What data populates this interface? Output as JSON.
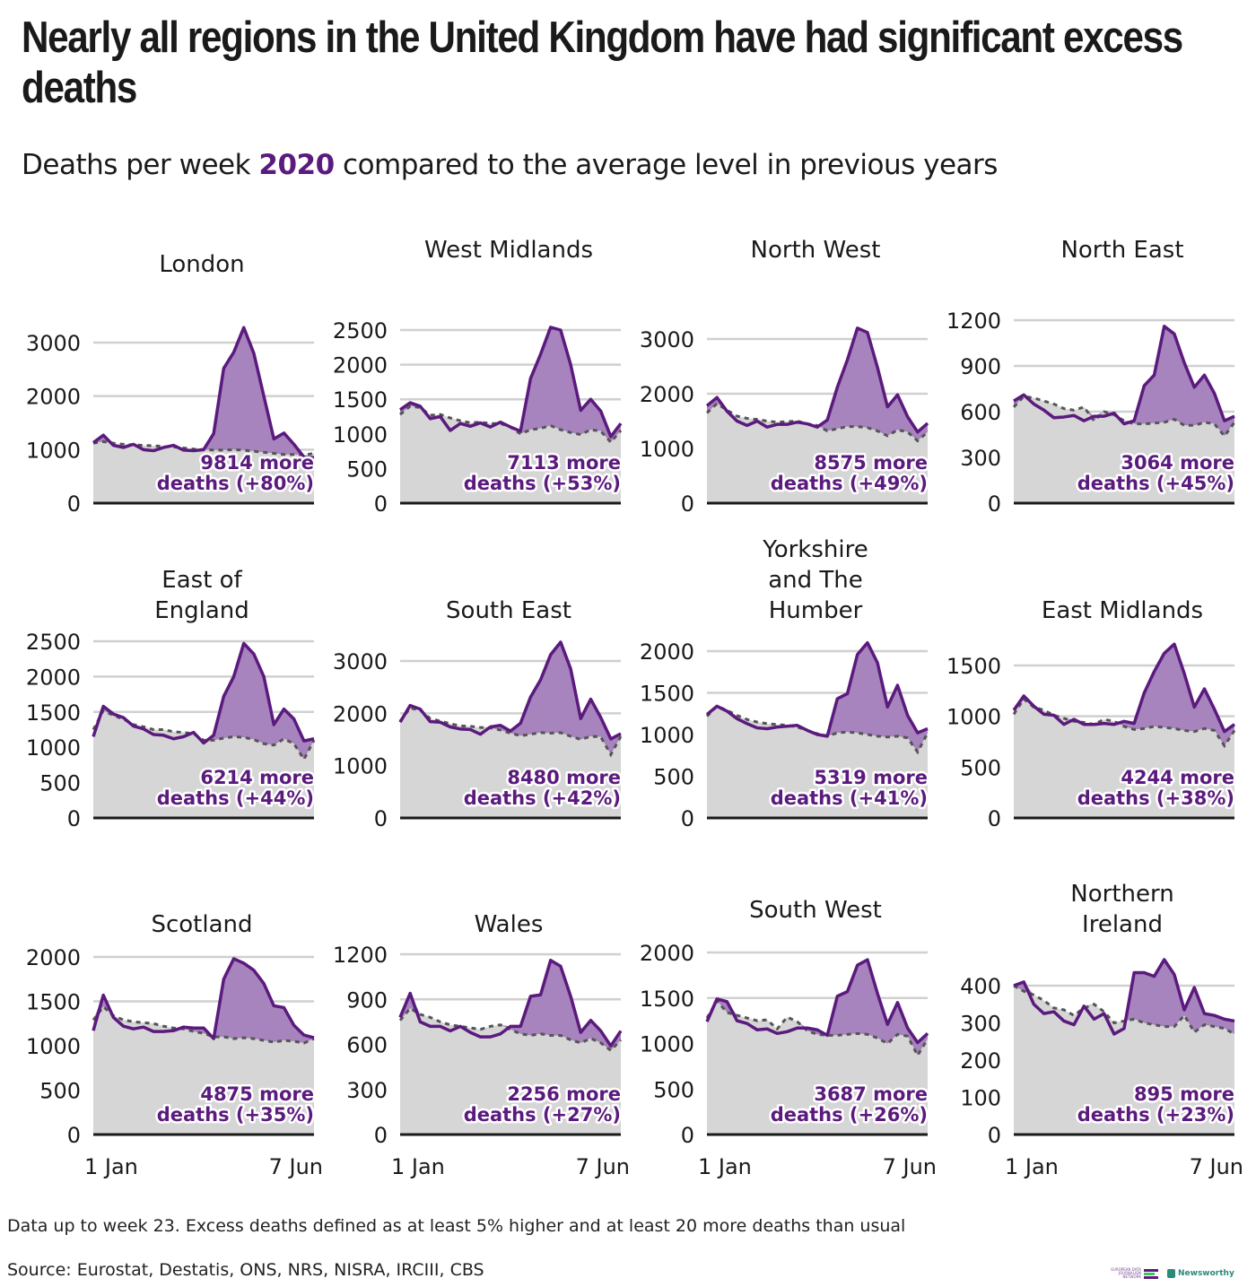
{
  "title": "Nearly all regions in the United Kingdom have had significant excess deaths",
  "subtitle": {
    "prefix": "Deaths per week ",
    "year": "2020",
    "suffix": " compared to the average level in previous years"
  },
  "footnote": "Data up to week 23. Excess deaths defined as at least 5% higher and at least 20 more deaths than usual",
  "source": "Source: Eurostat, Destatis, ONS, NRS, NISRA, IRCIII, CBS",
  "logos": {
    "edjn": "EUROPEAN DATA JOURNALISM NETWORK",
    "newsworthy": "Newsworthy"
  },
  "colors": {
    "line_2020": "#5b1a7d",
    "excess_fill": "#a784bd",
    "baseline_fill": "#d6d6d6",
    "baseline_line": "#555555",
    "grid": "#d0d0d0",
    "axis": "#1a1a1a"
  },
  "chart_data": [
    {
      "type": "area",
      "title": "London",
      "x_labels": [
        "1 Jan",
        "7 Jun"
      ],
      "weeks": 23,
      "yticks": [
        0,
        1000,
        2000,
        3000
      ],
      "ylim": [
        0,
        3300
      ],
      "annotation": [
        "9814 more",
        "deaths (+80%)"
      ],
      "series": [
        {
          "name": "2020",
          "values": [
            1130,
            1270,
            1080,
            1040,
            1100,
            1000,
            980,
            1040,
            1080,
            990,
            980,
            1000,
            1300,
            2520,
            2820,
            3280,
            2800,
            2000,
            1200,
            1310,
            1100,
            860,
            850
          ]
        },
        {
          "name": "average",
          "values": [
            1120,
            1150,
            1120,
            1100,
            1090,
            1080,
            1070,
            1060,
            1050,
            1030,
            1010,
            1000,
            990,
            990,
            1000,
            990,
            970,
            950,
            930,
            910,
            910,
            900,
            930
          ]
        }
      ]
    },
    {
      "type": "area",
      "title": "West Midlands",
      "x_labels": [
        "1 Jan",
        "7 Jun"
      ],
      "weeks": 23,
      "yticks": [
        0,
        500,
        1000,
        1500,
        2000,
        2500
      ],
      "ylim": [
        0,
        2600
      ],
      "annotation": [
        "7113 more",
        "deaths (+53%)"
      ],
      "series": [
        {
          "name": "2020",
          "values": [
            1350,
            1450,
            1400,
            1220,
            1250,
            1050,
            1150,
            1110,
            1160,
            1100,
            1170,
            1100,
            1040,
            1800,
            2150,
            2540,
            2500,
            2000,
            1340,
            1500,
            1330,
            960,
            1150
          ]
        },
        {
          "name": "average",
          "values": [
            1280,
            1400,
            1380,
            1270,
            1280,
            1230,
            1190,
            1160,
            1170,
            1150,
            1150,
            1100,
            1000,
            1060,
            1080,
            1120,
            1060,
            1020,
            990,
            1060,
            1040,
            880,
            1050
          ]
        }
      ]
    },
    {
      "type": "area",
      "title": "North West",
      "x_labels": [
        "1 Jan",
        "7 Jun"
      ],
      "weeks": 23,
      "yticks": [
        0,
        1000,
        2000,
        3000
      ],
      "ylim": [
        0,
        3300
      ],
      "annotation": [
        "8575 more",
        "deaths (+49%)"
      ],
      "series": [
        {
          "name": "2020",
          "values": [
            1780,
            1930,
            1680,
            1500,
            1420,
            1500,
            1390,
            1440,
            1440,
            1480,
            1450,
            1390,
            1520,
            2120,
            2620,
            3200,
            3120,
            2480,
            1760,
            1980,
            1580,
            1300,
            1460
          ]
        },
        {
          "name": "average",
          "values": [
            1650,
            1820,
            1700,
            1590,
            1550,
            1530,
            1500,
            1480,
            1490,
            1500,
            1450,
            1420,
            1320,
            1360,
            1400,
            1400,
            1380,
            1320,
            1230,
            1340,
            1300,
            1140,
            1300
          ]
        }
      ]
    },
    {
      "type": "area",
      "title": "North East",
      "x_labels": [
        "1 Jan",
        "7 Jun"
      ],
      "weeks": 23,
      "yticks": [
        0,
        300,
        600,
        900,
        1200
      ],
      "ylim": [
        0,
        1250
      ],
      "annotation": [
        "3064 more",
        "deaths (+45%)"
      ],
      "series": [
        {
          "name": "2020",
          "values": [
            670,
            710,
            650,
            610,
            560,
            565,
            575,
            540,
            570,
            570,
            590,
            520,
            540,
            770,
            840,
            1160,
            1110,
            920,
            760,
            840,
            720,
            540,
            570
          ]
        },
        {
          "name": "average",
          "values": [
            630,
            700,
            690,
            670,
            650,
            620,
            610,
            630,
            540,
            600,
            580,
            540,
            520,
            520,
            525,
            530,
            550,
            510,
            510,
            530,
            520,
            440,
            530
          ]
        }
      ]
    },
    {
      "type": "area",
      "title": "East of\nEngland",
      "x_labels": [
        "1 Jan",
        "7 Jun"
      ],
      "weeks": 23,
      "yticks": [
        0,
        500,
        1000,
        1500,
        2000,
        2500
      ],
      "ylim": [
        0,
        2600
      ],
      "annotation": [
        "6214 more",
        "deaths (+44%)"
      ],
      "series": [
        {
          "name": "2020",
          "values": [
            1150,
            1580,
            1470,
            1420,
            1300,
            1260,
            1180,
            1170,
            1120,
            1150,
            1210,
            1060,
            1170,
            1720,
            2000,
            2470,
            2320,
            2000,
            1320,
            1540,
            1400,
            1090,
            1120
          ]
        },
        {
          "name": "average",
          "values": [
            1250,
            1520,
            1450,
            1400,
            1320,
            1290,
            1250,
            1250,
            1220,
            1210,
            1190,
            1100,
            1100,
            1130,
            1150,
            1140,
            1110,
            1050,
            1030,
            1120,
            1050,
            830,
            1100
          ]
        }
      ]
    },
    {
      "type": "area",
      "title": "South East",
      "x_labels": [
        "1 Jan",
        "7 Jun"
      ],
      "weeks": 23,
      "yticks": [
        0,
        1000,
        2000,
        3000
      ],
      "ylim": [
        0,
        3400
      ],
      "annotation": [
        "8480 more",
        "deaths (+42%)"
      ],
      "series": [
        {
          "name": "2020",
          "values": [
            1830,
            2150,
            2080,
            1840,
            1830,
            1740,
            1700,
            1690,
            1600,
            1740,
            1770,
            1660,
            1810,
            2310,
            2640,
            3120,
            3360,
            2850,
            1900,
            2270,
            1920,
            1510,
            1610
          ]
        },
        {
          "name": "average",
          "values": [
            1850,
            2100,
            2060,
            1900,
            1850,
            1800,
            1760,
            1750,
            1730,
            1720,
            1680,
            1620,
            1570,
            1600,
            1630,
            1620,
            1630,
            1560,
            1500,
            1560,
            1550,
            1210,
            1560
          ]
        }
      ]
    },
    {
      "type": "area",
      "title": "Yorkshire\nand The\nHumber",
      "x_labels": [
        "1 Jan",
        "7 Jun"
      ],
      "weeks": 23,
      "yticks": [
        0,
        500,
        1000,
        1500,
        2000
      ],
      "ylim": [
        0,
        2150
      ],
      "annotation": [
        "5319 more",
        "deaths (+41%)"
      ],
      "series": [
        {
          "name": "2020",
          "values": [
            1240,
            1340,
            1280,
            1190,
            1130,
            1080,
            1070,
            1090,
            1100,
            1110,
            1050,
            1000,
            980,
            1430,
            1490,
            1960,
            2100,
            1860,
            1330,
            1590,
            1230,
            1020,
            1070
          ]
        },
        {
          "name": "average",
          "values": [
            1220,
            1340,
            1290,
            1230,
            1180,
            1150,
            1130,
            1120,
            1110,
            1090,
            1050,
            1010,
            980,
            1020,
            1030,
            1020,
            1000,
            980,
            970,
            980,
            960,
            790,
            1020
          ]
        }
      ]
    },
    {
      "type": "area",
      "title": "East Midlands",
      "x_labels": [
        "1 Jan",
        "7 Jun"
      ],
      "weeks": 23,
      "yticks": [
        0,
        500,
        1000,
        1500
      ],
      "ylim": [
        0,
        1800
      ],
      "annotation": [
        "4244 more",
        "deaths (+38%)"
      ],
      "series": [
        {
          "name": "2020",
          "values": [
            1060,
            1200,
            1100,
            1020,
            1010,
            920,
            970,
            920,
            920,
            930,
            920,
            950,
            930,
            1230,
            1440,
            1620,
            1710,
            1420,
            1090,
            1270,
            1070,
            850,
            920
          ]
        },
        {
          "name": "average",
          "values": [
            1020,
            1170,
            1090,
            1060,
            1010,
            980,
            950,
            940,
            920,
            970,
            950,
            900,
            870,
            880,
            900,
            890,
            880,
            860,
            850,
            880,
            860,
            710,
            860
          ]
        }
      ]
    },
    {
      "type": "area",
      "title": "Scotland",
      "x_labels": [
        "1 Jan",
        "7 Jun"
      ],
      "weeks": 23,
      "yticks": [
        0,
        500,
        1000,
        1500,
        2000
      ],
      "ylim": [
        0,
        2100
      ],
      "annotation": [
        "4875 more",
        "deaths (+35%)"
      ],
      "series": [
        {
          "name": "2020",
          "values": [
            1170,
            1570,
            1320,
            1220,
            1190,
            1210,
            1160,
            1160,
            1170,
            1210,
            1200,
            1200,
            1080,
            1750,
            1980,
            1930,
            1850,
            1700,
            1450,
            1430,
            1230,
            1120,
            1090
          ]
        },
        {
          "name": "average",
          "values": [
            1290,
            1440,
            1340,
            1290,
            1270,
            1260,
            1250,
            1220,
            1200,
            1190,
            1160,
            1140,
            1100,
            1100,
            1080,
            1090,
            1080,
            1060,
            1040,
            1060,
            1050,
            1030,
            1080
          ]
        }
      ]
    },
    {
      "type": "area",
      "title": "Wales",
      "x_labels": [
        "1 Jan",
        "7 Jun"
      ],
      "weeks": 23,
      "yticks": [
        0,
        300,
        600,
        900,
        1200
      ],
      "ylim": [
        0,
        1250
      ],
      "annotation": [
        "2256 more",
        "deaths (+27%)"
      ],
      "series": [
        {
          "name": "2020",
          "values": [
            780,
            940,
            750,
            720,
            720,
            690,
            720,
            680,
            650,
            650,
            670,
            720,
            720,
            920,
            930,
            1160,
            1120,
            920,
            680,
            760,
            690,
            590,
            690
          ]
        },
        {
          "name": "average",
          "values": [
            760,
            840,
            800,
            780,
            750,
            730,
            720,
            710,
            700,
            720,
            730,
            700,
            670,
            660,
            670,
            660,
            660,
            630,
            610,
            640,
            610,
            560,
            630
          ]
        }
      ]
    },
    {
      "type": "area",
      "title": "South West",
      "x_labels": [
        "1 Jan",
        "7 Jun"
      ],
      "weeks": 23,
      "yticks": [
        0,
        500,
        1000,
        1500,
        2000
      ],
      "ylim": [
        0,
        2100
      ],
      "annotation": [
        "3687 more",
        "deaths (+26%)"
      ],
      "series": [
        {
          "name": "2020",
          "values": [
            1240,
            1490,
            1460,
            1250,
            1220,
            1150,
            1160,
            1110,
            1130,
            1170,
            1170,
            1150,
            1090,
            1520,
            1570,
            1860,
            1920,
            1550,
            1210,
            1450,
            1170,
            1010,
            1110
          ]
        },
        {
          "name": "average",
          "values": [
            1280,
            1470,
            1340,
            1310,
            1280,
            1250,
            1260,
            1160,
            1290,
            1240,
            1140,
            1100,
            1090,
            1090,
            1100,
            1110,
            1100,
            1060,
            1000,
            1100,
            1080,
            870,
            1050
          ]
        }
      ]
    },
    {
      "type": "area",
      "title": "Northern\nIreland",
      "x_labels": [
        "1 Jan",
        "7 Jun"
      ],
      "weeks": 23,
      "yticks": [
        0,
        100,
        200,
        300,
        400
      ],
      "ylim": [
        0,
        470
      ],
      "annotation": [
        "895 more",
        "deaths (+23%)"
      ],
      "series": [
        {
          "name": "2020",
          "values": [
            400,
            410,
            350,
            325,
            330,
            305,
            295,
            345,
            310,
            325,
            270,
            285,
            435,
            435,
            425,
            470,
            430,
            335,
            395,
            325,
            320,
            310,
            305
          ]
        },
        {
          "name": "average",
          "values": [
            400,
            385,
            375,
            360,
            340,
            335,
            320,
            340,
            350,
            330,
            300,
            305,
            310,
            300,
            295,
            290,
            290,
            320,
            275,
            295,
            290,
            285,
            270
          ]
        }
      ]
    }
  ]
}
